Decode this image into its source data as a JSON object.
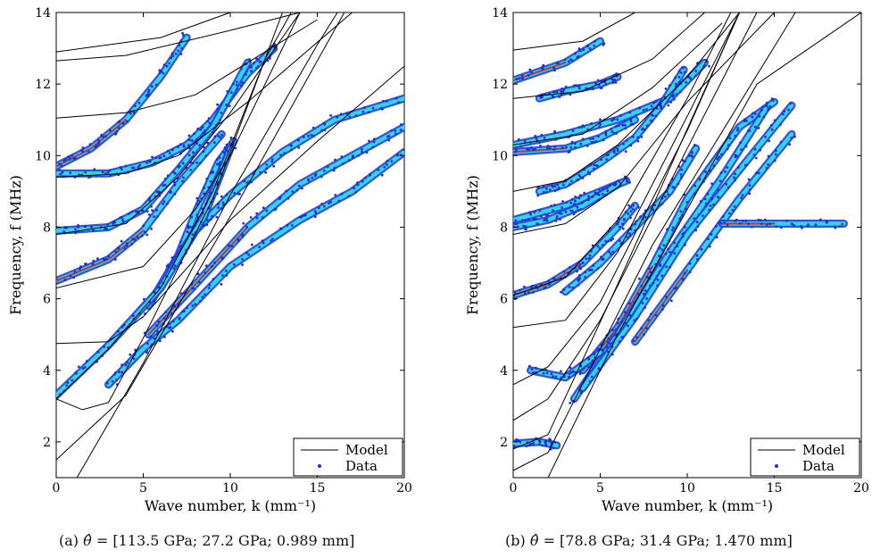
{
  "captions": {
    "a": {
      "label": "(a)",
      "theta_symbol": "θ̂",
      "text": "= [113.5 GPa; 27.2 GPa; 0.989 mm]"
    },
    "b": {
      "label": "(b)",
      "theta_symbol": "θ̂",
      "text": "= [78.8 GPa; 31.4 GPa; 1.470 mm]"
    }
  },
  "colors": {
    "model_line": "#000000",
    "data_point": "#1f2fd0",
    "ridge_low": "#1e40e0",
    "ridge_mid": "#2ee6e0",
    "ridge_high": "#d81818"
  },
  "chart_data": [
    {
      "panel": "a",
      "type": "scatter",
      "xlabel": "Wave number, k (mm⁻¹)",
      "ylabel": "Frequency, f (MHz)",
      "xlim": [
        0,
        20
      ],
      "ylim": [
        1,
        14
      ],
      "xticks": [
        0,
        5,
        10,
        15,
        20
      ],
      "yticks": [
        2,
        4,
        6,
        8,
        10,
        12,
        14
      ],
      "grid": false,
      "legend": {
        "placement": "bottom-right",
        "entries": [
          "Model",
          "Data"
        ]
      },
      "series": [
        {
          "name": "Model",
          "style": "line",
          "curves": [
            [
              [
                0,
                0
              ],
              [
                5,
                4.2
              ],
              [
                10,
                8.9
              ],
              [
                15,
                13.1
              ],
              [
                20,
                17
              ]
            ],
            [
              [
                0,
                1.5
              ],
              [
                4,
                3.3
              ],
              [
                10,
                8.3
              ],
              [
                20,
                17
              ]
            ],
            [
              [
                0,
                3.2
              ],
              [
                1.5,
                2.9
              ],
              [
                3,
                3.1
              ],
              [
                5,
                4.9
              ],
              [
                9,
                8.8
              ],
              [
                13,
                14
              ]
            ],
            [
              [
                0,
                3.2
              ],
              [
                3,
                4.6
              ],
              [
                6,
                6.3
              ],
              [
                9,
                9
              ],
              [
                12,
                12.7
              ],
              [
                13.5,
                14
              ]
            ],
            [
              [
                0,
                4.75
              ],
              [
                3,
                4.8
              ],
              [
                5,
                5.5
              ],
              [
                10,
                8.2
              ],
              [
                15,
                10.4
              ],
              [
                20,
                12.5
              ]
            ],
            [
              [
                0,
                6.3
              ],
              [
                5,
                6.9
              ],
              [
                8,
                8.5
              ],
              [
                10,
                10
              ],
              [
                13,
                13
              ],
              [
                14,
                14
              ]
            ],
            [
              [
                0,
                7.8
              ],
              [
                4,
                8.1
              ],
              [
                7,
                9.4
              ],
              [
                10,
                11.2
              ],
              [
                14,
                14
              ]
            ],
            [
              [
                0,
                9.4
              ],
              [
                4,
                9.5
              ],
              [
                7,
                10
              ],
              [
                11,
                11.5
              ],
              [
                17,
                14
              ]
            ],
            [
              [
                0,
                11.05
              ],
              [
                4,
                11.2
              ],
              [
                8,
                11.7
              ],
              [
                15,
                13.8
              ]
            ],
            [
              [
                0,
                12.65
              ],
              [
                4,
                12.8
              ],
              [
                10,
                13.5
              ],
              [
                14,
                14
              ]
            ],
            [
              [
                0,
                12.9
              ],
              [
                6,
                13.3
              ],
              [
                10,
                14
              ]
            ]
          ]
        },
        {
          "name": "Data",
          "style": "points",
          "bands": [
            [
              [
                0,
                9.7
              ],
              [
                2,
                10.2
              ],
              [
                4,
                11
              ],
              [
                6,
                12.2
              ],
              [
                7.5,
                13.3
              ]
            ],
            [
              [
                0,
                9.5
              ],
              [
                3,
                9.5
              ],
              [
                5.5,
                9.8
              ],
              [
                7.5,
                10.3
              ],
              [
                9,
                11
              ],
              [
                11,
                12.3
              ],
              [
                12.5,
                13
              ]
            ],
            [
              [
                0,
                7.9
              ],
              [
                3,
                8
              ],
              [
                5,
                8.5
              ],
              [
                7,
                9.6
              ],
              [
                9,
                10.8
              ],
              [
                11,
                12.6
              ]
            ],
            [
              [
                0,
                6.5
              ],
              [
                3,
                7.1
              ],
              [
                5,
                7.9
              ],
              [
                7,
                9.2
              ],
              [
                9.5,
                10.6
              ]
            ],
            [
              [
                5.3,
                5.8
              ],
              [
                7,
                7.2
              ],
              [
                8,
                8.4
              ],
              [
                9.3,
                9.8
              ],
              [
                10.2,
                10.4
              ]
            ],
            [
              [
                6.5,
                6.8
              ],
              [
                8,
                7.9
              ],
              [
                10,
                8.9
              ],
              [
                13,
                10.1
              ],
              [
                16,
                11
              ],
              [
                20,
                11.6
              ]
            ],
            [
              [
                5.3,
                5
              ],
              [
                8,
                6.4
              ],
              [
                11,
                8
              ],
              [
                14,
                9.2
              ],
              [
                17,
                10
              ],
              [
                20,
                10.8
              ]
            ],
            [
              [
                3,
                3.6
              ],
              [
                5,
                4.6
              ],
              [
                7,
                5.4
              ],
              [
                10,
                6.9
              ],
              [
                14,
                8.2
              ],
              [
                17,
                9
              ],
              [
                20,
                10.1
              ]
            ],
            [
              [
                0,
                3.3
              ],
              [
                3,
                4.7
              ],
              [
                6,
                6.3
              ],
              [
                8.5,
                8.3
              ],
              [
                10,
                10.2
              ]
            ]
          ]
        }
      ]
    },
    {
      "panel": "b",
      "type": "scatter",
      "xlabel": "Wave number, k (mm⁻¹)",
      "ylabel": "Frequency, f (MHz)",
      "xlim": [
        0,
        20
      ],
      "ylim": [
        1,
        14
      ],
      "xticks": [
        0,
        5,
        10,
        15,
        20
      ],
      "yticks": [
        2,
        4,
        6,
        8,
        10,
        12,
        14
      ],
      "grid": false,
      "legend": {
        "placement": "bottom-right",
        "entries": [
          "Model",
          "Data"
        ]
      },
      "series": [
        {
          "name": "Model",
          "style": "line",
          "curves": [
            [
              [
                0,
                1.2
              ],
              [
                2,
                1.7
              ],
              [
                8,
                7.5
              ],
              [
                20,
                17
              ]
            ],
            [
              [
                0,
                1.8
              ],
              [
                2,
                2.2
              ],
              [
                6,
                6.4
              ],
              [
                13,
                14
              ]
            ],
            [
              [
                0,
                2.6
              ],
              [
                2,
                3.2
              ],
              [
                5,
                5.4
              ],
              [
                10,
                10.2
              ],
              [
                14,
                14
              ]
            ],
            [
              [
                0,
                3.6
              ],
              [
                2,
                4.1
              ],
              [
                5,
                5.9
              ],
              [
                10,
                10.7
              ],
              [
                13,
                14
              ]
            ],
            [
              [
                0,
                5.2
              ],
              [
                3,
                5.4
              ],
              [
                6,
                7.3
              ],
              [
                10,
                11.1
              ],
              [
                13,
                14
              ]
            ],
            [
              [
                0,
                6.1
              ],
              [
                3,
                6.6
              ],
              [
                6,
                8.2
              ],
              [
                10,
                11.6
              ],
              [
                12.5,
                14
              ]
            ],
            [
              [
                0,
                7.8
              ],
              [
                3,
                8.1
              ],
              [
                6,
                9.1
              ],
              [
                10,
                11.5
              ],
              [
                15,
                14
              ]
            ],
            [
              [
                0,
                9
              ],
              [
                3,
                9.3
              ],
              [
                6,
                10.3
              ],
              [
                10,
                12.2
              ],
              [
                13,
                14
              ]
            ],
            [
              [
                0,
                10.3
              ],
              [
                4,
                10.6
              ],
              [
                8,
                11.9
              ],
              [
                12,
                13.7
              ]
            ],
            [
              [
                0,
                11.6
              ],
              [
                4,
                11.8
              ],
              [
                8,
                12.7
              ],
              [
                11,
                14
              ]
            ],
            [
              [
                0,
                12.95
              ],
              [
                4,
                13.2
              ],
              [
                7,
                14
              ]
            ],
            [
              [
                2,
                1
              ],
              [
                6,
                5
              ],
              [
                14,
                12
              ],
              [
                20,
                14
              ]
            ]
          ]
        },
        {
          "name": "Data",
          "style": "points",
          "bands": [
            [
              [
                0,
                12.1
              ],
              [
                3,
                12.6
              ],
              [
                5,
                13.2
              ]
            ],
            [
              [
                1.5,
                11.6
              ],
              [
                3,
                11.8
              ],
              [
                5,
                12
              ],
              [
                6,
                12.2
              ]
            ],
            [
              [
                0,
                10.3
              ],
              [
                3,
                10.6
              ],
              [
                6,
                11
              ],
              [
                9,
                11.6
              ],
              [
                11,
                12.6
              ]
            ],
            [
              [
                0,
                10.1
              ],
              [
                3,
                10.2
              ],
              [
                5,
                10.5
              ],
              [
                7,
                11
              ]
            ],
            [
              [
                1.5,
                9
              ],
              [
                3,
                9.2
              ],
              [
                5,
                9.8
              ],
              [
                7,
                10.5
              ],
              [
                8.5,
                11.4
              ],
              [
                9.8,
                12.4
              ]
            ],
            [
              [
                0,
                8.2
              ],
              [
                3,
                8.6
              ],
              [
                5,
                9
              ],
              [
                6.5,
                9.3
              ]
            ],
            [
              [
                0,
                6.1
              ],
              [
                2,
                6.4
              ],
              [
                4,
                7
              ],
              [
                6,
                8
              ],
              [
                7,
                8.6
              ]
            ],
            [
              [
                0,
                8
              ],
              [
                2,
                8.2
              ],
              [
                4,
                8.6
              ],
              [
                6,
                9.2
              ]
            ],
            [
              [
                3,
                6.2
              ],
              [
                5,
                7
              ],
              [
                7,
                8
              ],
              [
                9,
                9
              ],
              [
                10.5,
                10.2
              ]
            ],
            [
              [
                4,
                4
              ],
              [
                6,
                5.2
              ],
              [
                8,
                6.9
              ],
              [
                10,
                8.8
              ],
              [
                13,
                10.8
              ],
              [
                15,
                11.5
              ]
            ],
            [
              [
                3.5,
                3.2
              ],
              [
                6,
                5
              ],
              [
                9,
                7.3
              ],
              [
                12,
                9.4
              ],
              [
                14.5,
                11.3
              ]
            ],
            [
              [
                4,
                3.5
              ],
              [
                7,
                5.5
              ],
              [
                10,
                7.8
              ],
              [
                13,
                9.6
              ],
              [
                16,
                11.4
              ]
            ],
            [
              [
                7,
                4.8
              ],
              [
                10,
                6.8
              ],
              [
                13,
                8.8
              ],
              [
                16,
                10.6
              ]
            ],
            [
              [
                1,
                4
              ],
              [
                3,
                3.8
              ],
              [
                5,
                4.5
              ]
            ],
            [
              [
                0,
                1.95
              ],
              [
                1.5,
                2
              ],
              [
                2.5,
                1.9
              ]
            ],
            [
              [
                12,
                8.1
              ],
              [
                15,
                8.1
              ],
              [
                19,
                8.1
              ]
            ]
          ]
        }
      ]
    }
  ]
}
